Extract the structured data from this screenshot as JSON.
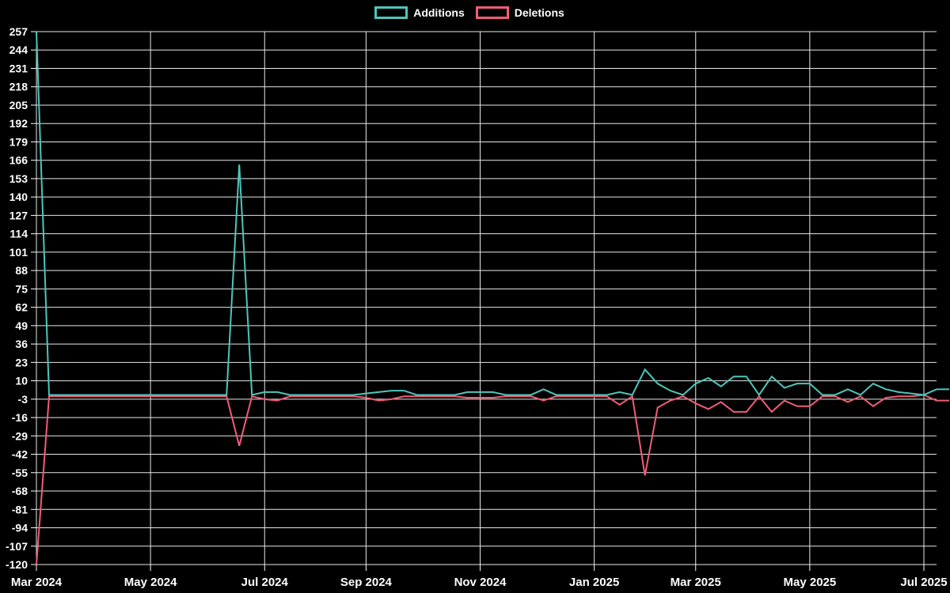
{
  "chart_data": {
    "type": "line",
    "title": "",
    "legend_labels": [
      "Additions",
      "Deletions"
    ],
    "legend_position": "top-center",
    "grid": true,
    "background": "#000000",
    "grid_color": "#E6E8E8",
    "text_color": "#FFFFFF",
    "x_axis": {
      "unit": "week",
      "tick_labels": [
        "Mar 2024",
        "May 2024",
        "Jul 2024",
        "Sep 2024",
        "Nov 2024",
        "Jan 2025",
        "Mar 2025",
        "May 2025",
        "Jul 2025"
      ],
      "tick_week_indices": [
        0,
        9,
        18,
        26,
        35,
        44,
        52,
        61,
        70
      ]
    },
    "y_axis": {
      "min": -120,
      "max": 257,
      "tick_step": 13,
      "tick_values": [
        257,
        244,
        231,
        218,
        205,
        192,
        179,
        166,
        153,
        140,
        127,
        114,
        101,
        88,
        75,
        62,
        49,
        36,
        23,
        10,
        -3,
        -16,
        -29,
        -42,
        -55,
        -68,
        -81,
        -94,
        -107,
        -120
      ]
    },
    "series": [
      {
        "name": "Additions",
        "color": "#4DC6BC",
        "values": [
          257,
          0,
          0,
          0,
          0,
          0,
          0,
          0,
          0,
          0,
          0,
          0,
          0,
          0,
          0,
          0,
          163,
          0,
          2,
          2,
          0,
          0,
          0,
          0,
          0,
          0,
          1,
          2,
          3,
          3,
          0,
          0,
          0,
          0,
          2,
          2,
          2,
          0,
          0,
          0,
          4,
          0,
          0,
          0,
          0,
          0,
          2,
          0,
          18,
          8,
          3,
          0,
          8,
          12,
          6,
          13,
          13,
          0,
          13,
          5,
          8,
          8,
          0,
          0,
          4,
          0,
          8,
          4,
          2,
          1,
          0,
          4,
          4
        ]
      },
      {
        "name": "Deletions",
        "color": "#F25C78",
        "values": [
          -120,
          -1,
          -1,
          -1,
          -1,
          -1,
          -1,
          -1,
          -1,
          -1,
          -1,
          -1,
          -1,
          -1,
          -1,
          -1,
          -36,
          -1,
          -3,
          -4,
          -1,
          -1,
          -1,
          -1,
          -1,
          -1,
          -2,
          -4,
          -3,
          -1,
          -1,
          -1,
          -1,
          -1,
          -2,
          -2,
          -2,
          -1,
          -1,
          -1,
          -4,
          -1,
          -1,
          -1,
          -1,
          -1,
          -7,
          -1,
          -57,
          -9,
          -4,
          -1,
          -6,
          -10,
          -5,
          -12,
          -12,
          -1,
          -12,
          -4,
          -8,
          -8,
          -1,
          -1,
          -5,
          -1,
          -8,
          -2,
          -1,
          -1,
          0,
          -4,
          -4
        ]
      }
    ]
  }
}
